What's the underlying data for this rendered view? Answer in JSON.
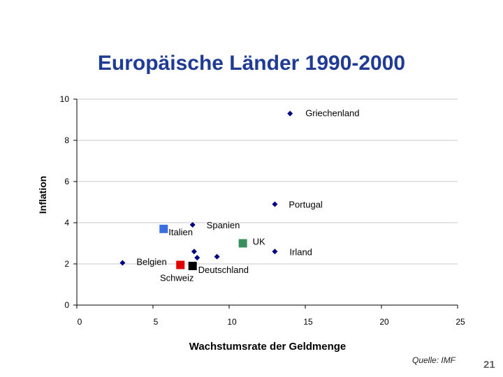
{
  "slide": {
    "page_number": "21",
    "source": "Quelle: IMF"
  },
  "chart_data": {
    "type": "scatter",
    "title": "Europäische Länder 1990-2000",
    "xlabel": "Wachstumsrate der Geldmenge",
    "ylabel": "Inflation",
    "xlim": [
      0,
      25
    ],
    "ylim": [
      0,
      10
    ],
    "xticks": [
      0,
      5,
      10,
      15,
      20,
      25
    ],
    "yticks": [
      0,
      2,
      4,
      6,
      8,
      10
    ],
    "grid": "horizontal",
    "points": [
      {
        "x": 14.0,
        "y": 9.3,
        "label": "Griechenland",
        "marker": "diamond",
        "color": "#000080"
      },
      {
        "x": 13.0,
        "y": 4.9,
        "label": "Portugal",
        "marker": "diamond",
        "color": "#000080"
      },
      {
        "x": 7.6,
        "y": 3.9,
        "label": "Spanien",
        "marker": "diamond",
        "color": "#000080"
      },
      {
        "x": 5.7,
        "y": 3.7,
        "label": "Italien",
        "marker": "square",
        "color": "#3a6fe0"
      },
      {
        "x": 10.9,
        "y": 3.0,
        "label": "UK",
        "marker": "square",
        "color": "#3a8f5f"
      },
      {
        "x": 13.0,
        "y": 2.6,
        "label": "Irland",
        "marker": "diamond",
        "color": "#000080"
      },
      {
        "x": 3.0,
        "y": 2.05,
        "label": "Belgien",
        "marker": "diamond",
        "color": "#000080"
      },
      {
        "x": 6.8,
        "y": 1.95,
        "label": "Schweiz",
        "marker": "square",
        "color": "#e00000"
      },
      {
        "x": 7.6,
        "y": 1.9,
        "label": "Deutschland",
        "marker": "square",
        "color": "#000000"
      },
      {
        "x": 7.7,
        "y": 2.6,
        "label": "",
        "marker": "diamond",
        "color": "#000080"
      },
      {
        "x": 7.9,
        "y": 2.3,
        "label": "",
        "marker": "diamond",
        "color": "#000080"
      },
      {
        "x": 9.2,
        "y": 2.35,
        "label": "",
        "marker": "diamond",
        "color": "#000080"
      }
    ]
  }
}
